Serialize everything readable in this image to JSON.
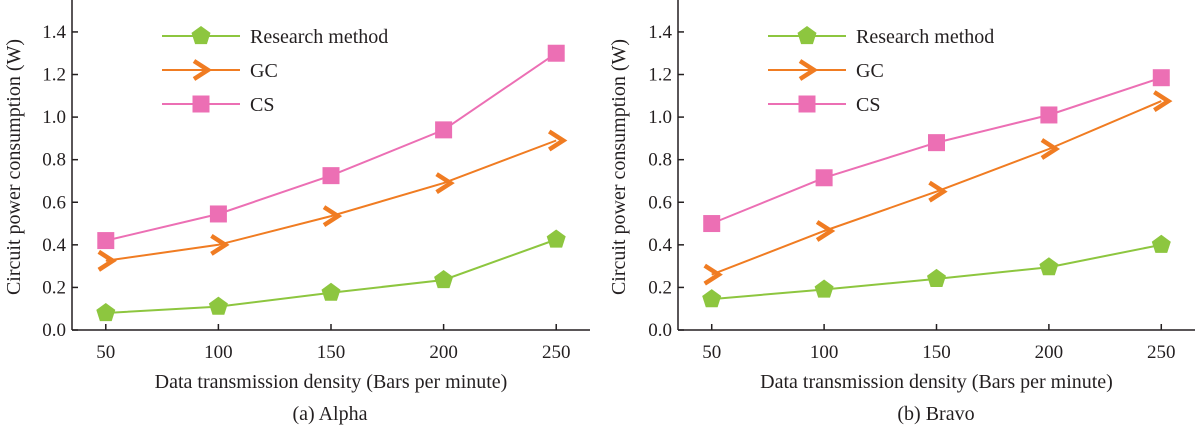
{
  "chart_data": [
    {
      "type": "line",
      "caption": "(a) Alpha",
      "xlabel": "Data transmission density (Bars per minute)",
      "ylabel": "Circuit power consumption (W)",
      "x": [
        50,
        100,
        150,
        200,
        250
      ],
      "xticks": [
        50,
        100,
        150,
        200,
        250
      ],
      "xlim": [
        35,
        265
      ],
      "ylim": [
        0,
        1.55
      ],
      "yticks": [
        0.0,
        0.2,
        0.4,
        0.6,
        0.8,
        1.0,
        1.2,
        1.4
      ],
      "ytick_labels": [
        "0.0",
        "0.2",
        "0.4",
        "0.6",
        "0.8",
        "1.0",
        "1.2",
        "1.4"
      ],
      "legend_position": "top-left",
      "series": [
        {
          "name": "Research method",
          "marker": "pentagon",
          "color": "#8dc63f",
          "values": [
            0.08,
            0.11,
            0.175,
            0.235,
            0.425
          ]
        },
        {
          "name": "GC",
          "marker": "chevron",
          "color": "#f07c22",
          "values": [
            0.325,
            0.4,
            0.535,
            0.69,
            0.89
          ]
        },
        {
          "name": "CS",
          "marker": "square",
          "color": "#ec6fb4",
          "values": [
            0.42,
            0.545,
            0.725,
            0.94,
            1.3
          ]
        }
      ]
    },
    {
      "type": "line",
      "caption": "(b) Bravo",
      "xlabel": "Data transmission density (Bars per minute)",
      "ylabel": "Circuit power consumption (W)",
      "x": [
        50,
        100,
        150,
        200,
        250
      ],
      "xticks": [
        50,
        100,
        150,
        200,
        250
      ],
      "xlim": [
        35,
        265
      ],
      "ylim": [
        0,
        1.55
      ],
      "yticks": [
        0.0,
        0.2,
        0.4,
        0.6,
        0.8,
        1.0,
        1.2,
        1.4
      ],
      "ytick_labels": [
        "0.0",
        "0.2",
        "0.4",
        "0.6",
        "0.8",
        "1.0",
        "1.2",
        "1.4"
      ],
      "legend_position": "top-left",
      "series": [
        {
          "name": "Research method",
          "marker": "pentagon",
          "color": "#8dc63f",
          "values": [
            0.145,
            0.19,
            0.24,
            0.295,
            0.4
          ]
        },
        {
          "name": "GC",
          "marker": "chevron",
          "color": "#f07c22",
          "values": [
            0.26,
            0.465,
            0.65,
            0.85,
            1.075
          ]
        },
        {
          "name": "CS",
          "marker": "square",
          "color": "#ec6fb4",
          "values": [
            0.5,
            0.715,
            0.88,
            1.01,
            1.185
          ]
        }
      ]
    }
  ]
}
